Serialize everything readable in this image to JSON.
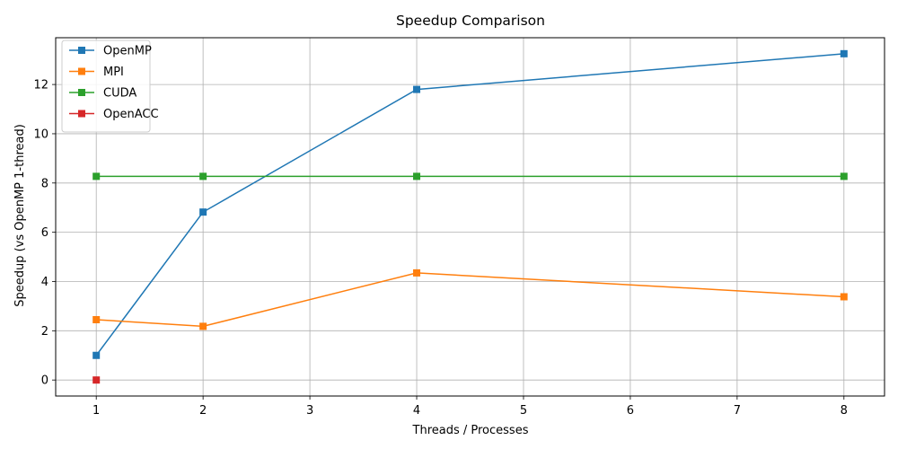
{
  "chart_data": {
    "type": "line",
    "title": "Speedup Comparison",
    "xlabel": "Threads / Processes",
    "ylabel": "Speedup (vs OpenMP 1-thread)",
    "xlim": [
      0.62,
      8.38
    ],
    "ylim": [
      -0.65,
      13.9
    ],
    "xticks": [
      1,
      2,
      3,
      4,
      5,
      6,
      7,
      8
    ],
    "yticks": [
      0,
      2,
      4,
      6,
      8,
      10,
      12
    ],
    "grid": true,
    "legend_position": "top-left",
    "marker": "square",
    "series": [
      {
        "name": "OpenMP",
        "color": "#1f77b4",
        "x": [
          1,
          2,
          4,
          8
        ],
        "y": [
          1.0,
          6.82,
          11.8,
          13.25
        ]
      },
      {
        "name": "MPI",
        "color": "#ff7f0e",
        "x": [
          1,
          2,
          4,
          8
        ],
        "y": [
          2.45,
          2.18,
          4.35,
          3.38
        ]
      },
      {
        "name": "CUDA",
        "color": "#2ca02c",
        "x": [
          1,
          2,
          4,
          8
        ],
        "y": [
          8.27,
          8.27,
          8.27,
          8.27
        ]
      },
      {
        "name": "OpenACC",
        "color": "#d62728",
        "x": [
          1
        ],
        "y": [
          0.0
        ]
      }
    ]
  }
}
